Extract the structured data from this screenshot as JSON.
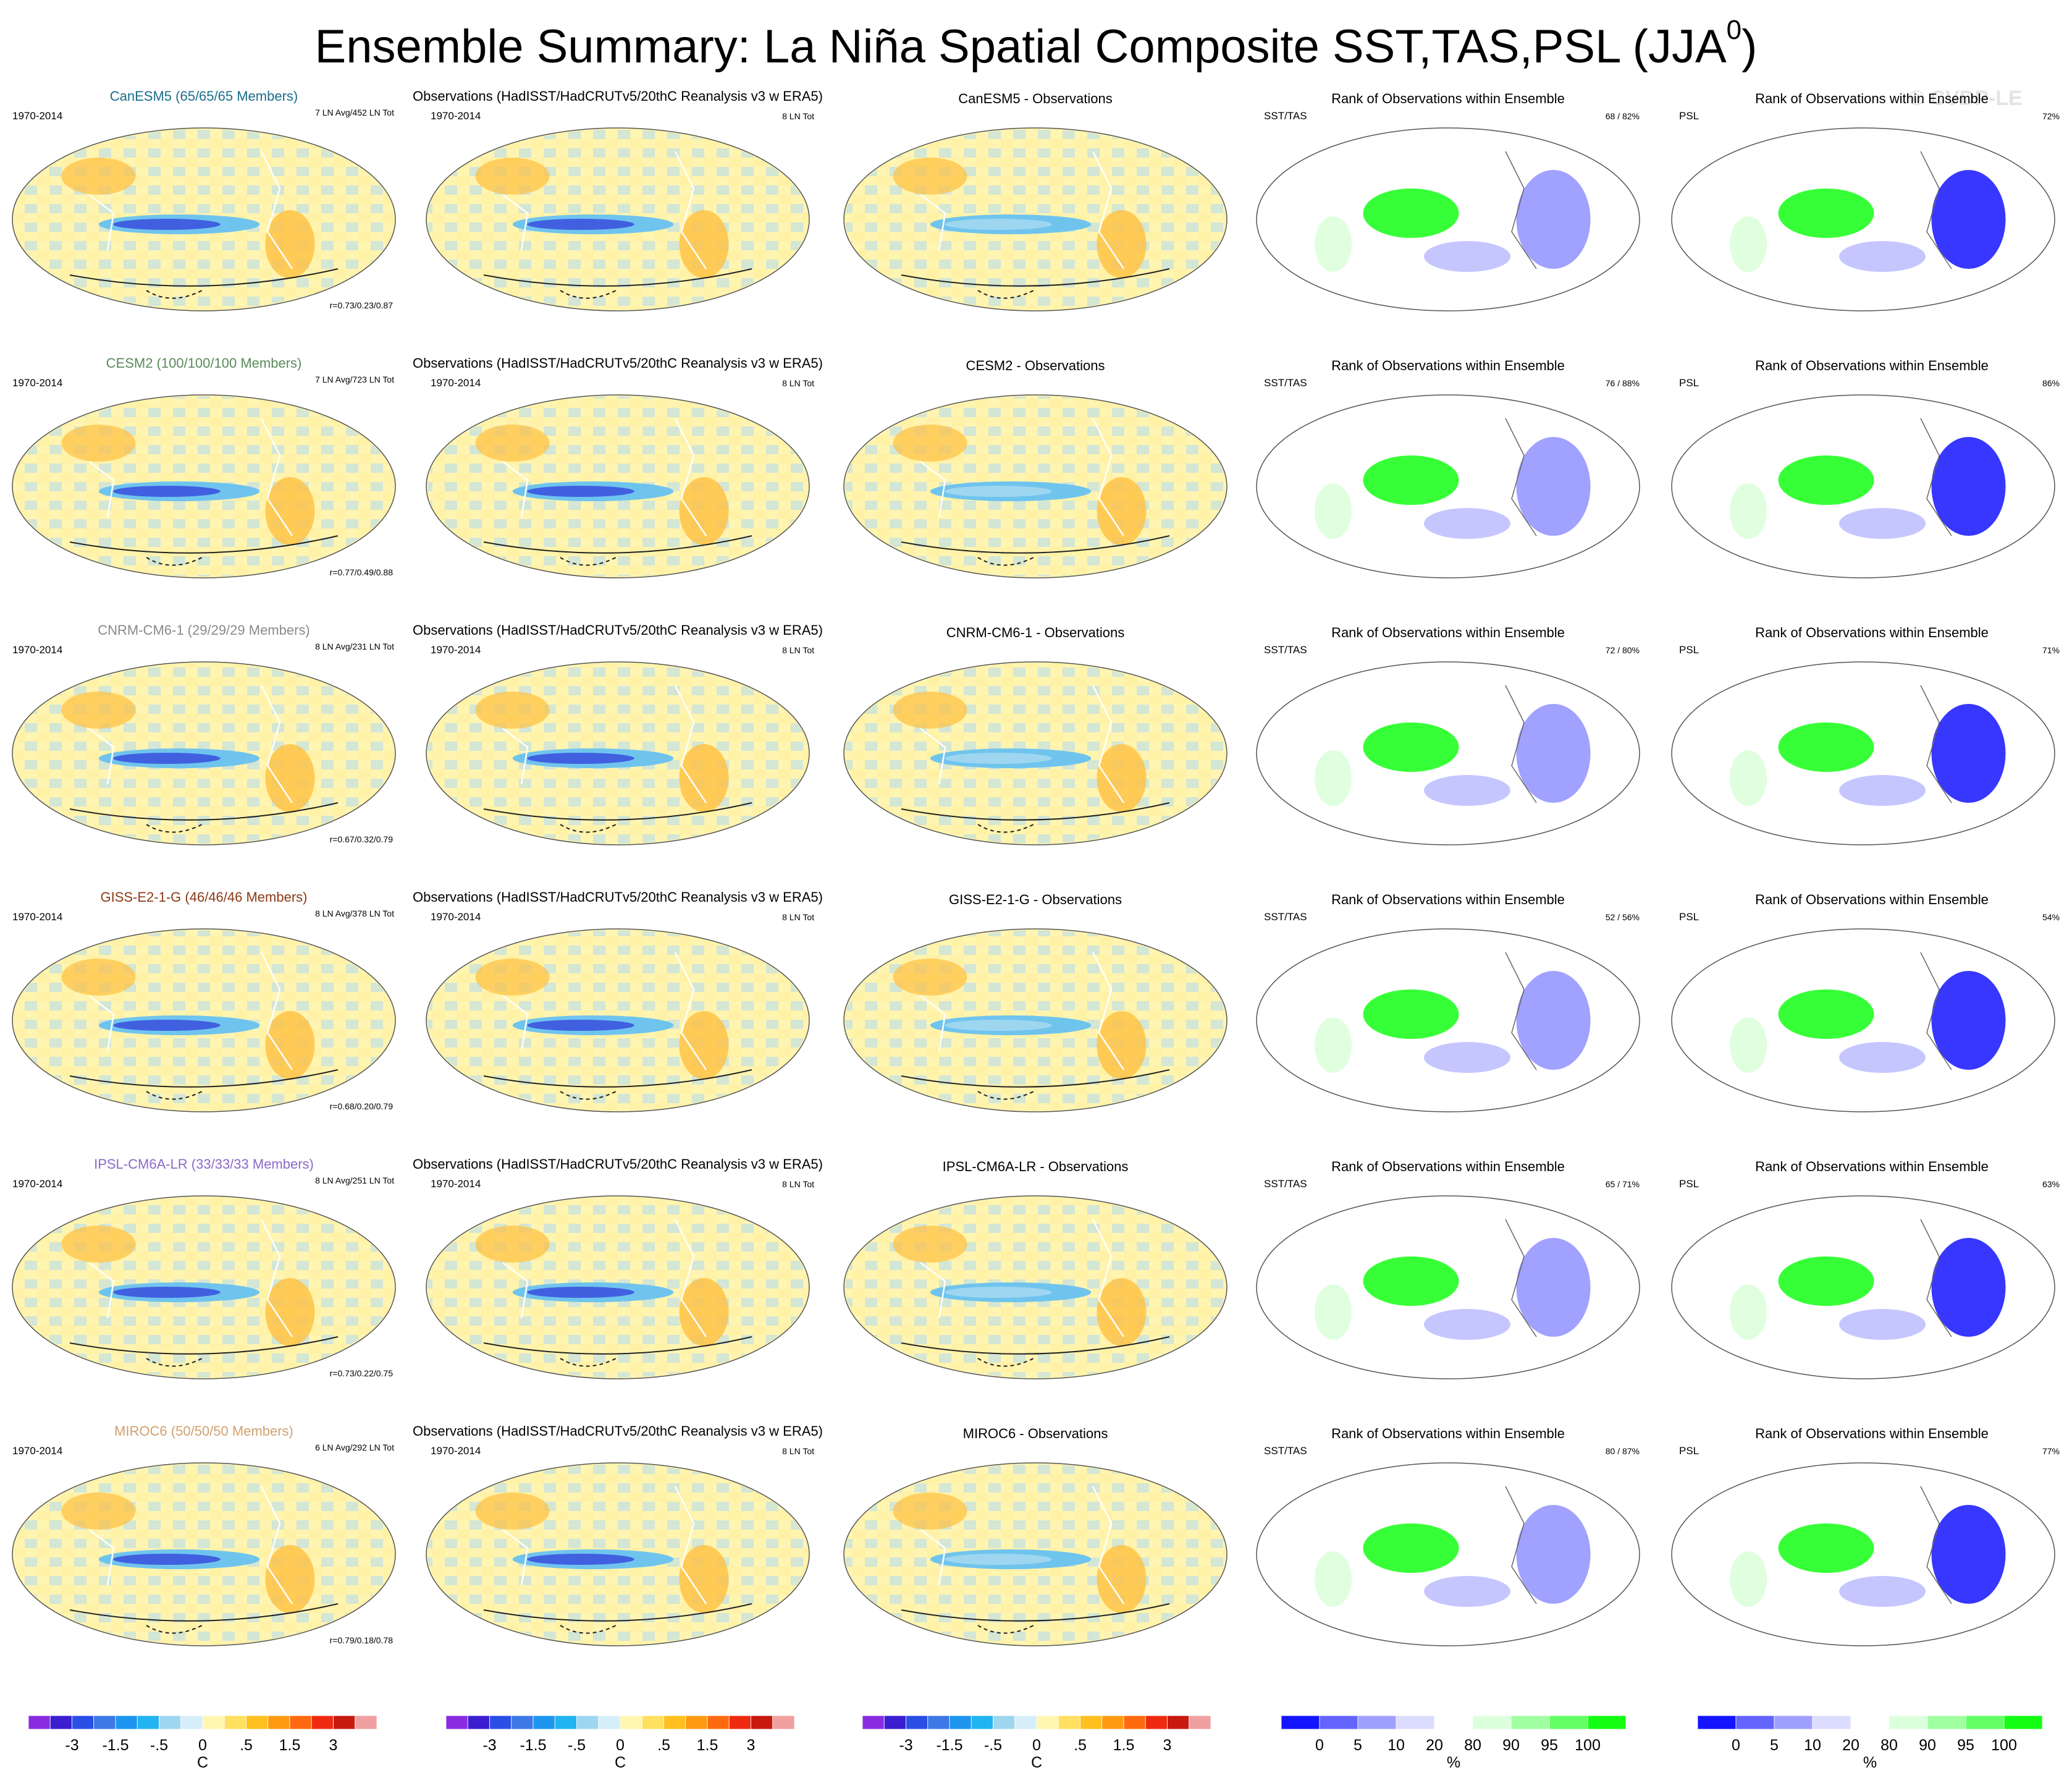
{
  "title": "Ensemble Summary: La Niña Spatial Composite SST,TAS,PSL (JJA",
  "title_superscript": "0",
  "title_close": ")",
  "watermark": "© CVDP-LE",
  "chart_data": {
    "type": "heatmap",
    "description_columns": [
      "ensemble composite",
      "observations",
      "ensemble minus observations",
      "rank SST/TAS",
      "rank PSL"
    ],
    "obs_title": "Observations (HadISST/HadCRUTv5/20thC Reanalysis v3 w ERA5)",
    "obs_count": "8 LN Tot",
    "period": "1970-2014",
    "rank_title": "Rank of Observations within Ensemble",
    "rank_sst_label": "SST/TAS",
    "rank_psl_label": "PSL",
    "rows": [
      {
        "model": "CanESM5",
        "members_label": "CanESM5 (65/65/65 Members)",
        "color": "#1a6e8c",
        "ln_info": "7 LN Avg/452 LN Tot",
        "r": "r=0.73/0.23/0.87",
        "diff_title": "CanESM5 - Observations",
        "sst_rank": "68 /  82%",
        "psl_rank": "72%"
      },
      {
        "model": "CESM2",
        "members_label": "CESM2 (100/100/100 Members)",
        "color": "#5a8a5a",
        "ln_info": "7 LN Avg/723 LN Tot",
        "r": "r=0.77/0.49/0.88",
        "diff_title": "CESM2 - Observations",
        "sst_rank": "76 /  88%",
        "psl_rank": "86%"
      },
      {
        "model": "CNRM-CM6-1",
        "members_label": "CNRM-CM6-1 (29/29/29 Members)",
        "color": "#8a8a8a",
        "ln_info": "8 LN Avg/231 LN Tot",
        "r": "r=0.67/0.32/0.79",
        "diff_title": "CNRM-CM6-1 - Observations",
        "sst_rank": "72 /  80%",
        "psl_rank": "71%"
      },
      {
        "model": "GISS-E2-1-G",
        "members_label": "GISS-E2-1-G (46/46/46 Members)",
        "color": "#8b3a14",
        "ln_info": "8 LN Avg/378 LN Tot",
        "r": "r=0.68/0.20/0.79",
        "diff_title": "GISS-E2-1-G - Observations",
        "sst_rank": "52 /  56%",
        "psl_rank": "54%"
      },
      {
        "model": "IPSL-CM6A-LR",
        "members_label": "IPSL-CM6A-LR (33/33/33 Members)",
        "color": "#8a6ac8",
        "ln_info": "8 LN Avg/251 LN Tot",
        "r": "r=0.73/0.22/0.75",
        "diff_title": "IPSL-CM6A-LR - Observations",
        "sst_rank": "65 /  71%",
        "psl_rank": "63%"
      },
      {
        "model": "MIROC6",
        "members_label": "MIROC6 (50/50/50 Members)",
        "color": "#d2a070",
        "ln_info": "6 LN Avg/292 LN Tot",
        "r": "r=0.79/0.18/0.78",
        "diff_title": "MIROC6 - Observations",
        "sst_rank": "80 /  87%",
        "psl_rank": "77%"
      }
    ],
    "colorbar_temp": {
      "colors": [
        "#8a2be2",
        "#3a1ed0",
        "#2a4ee6",
        "#3c78e6",
        "#1e96f0",
        "#22b4f0",
        "#9ed6f0",
        "#d6eefa",
        "#fff7b0",
        "#ffe060",
        "#ffc020",
        "#ff9a10",
        "#ff6a10",
        "#ee2a10",
        "#c81a10",
        "#f0a0a0"
      ],
      "ticks": [
        "-3",
        "-1.5",
        "-.5",
        "0",
        ".5",
        "1.5",
        "3"
      ],
      "unit": "C"
    },
    "colorbar_rank": {
      "colors": [
        "#1414ff",
        "#6464ff",
        "#a0a0ff",
        "#dcdcff",
        "#ffffff",
        "#dcffdc",
        "#a0ffa0",
        "#64ff64",
        "#14ff14"
      ],
      "ticks": [
        "0",
        "5",
        "10",
        "20",
        "80",
        "90",
        "95",
        "100"
      ],
      "unit": "%"
    }
  }
}
